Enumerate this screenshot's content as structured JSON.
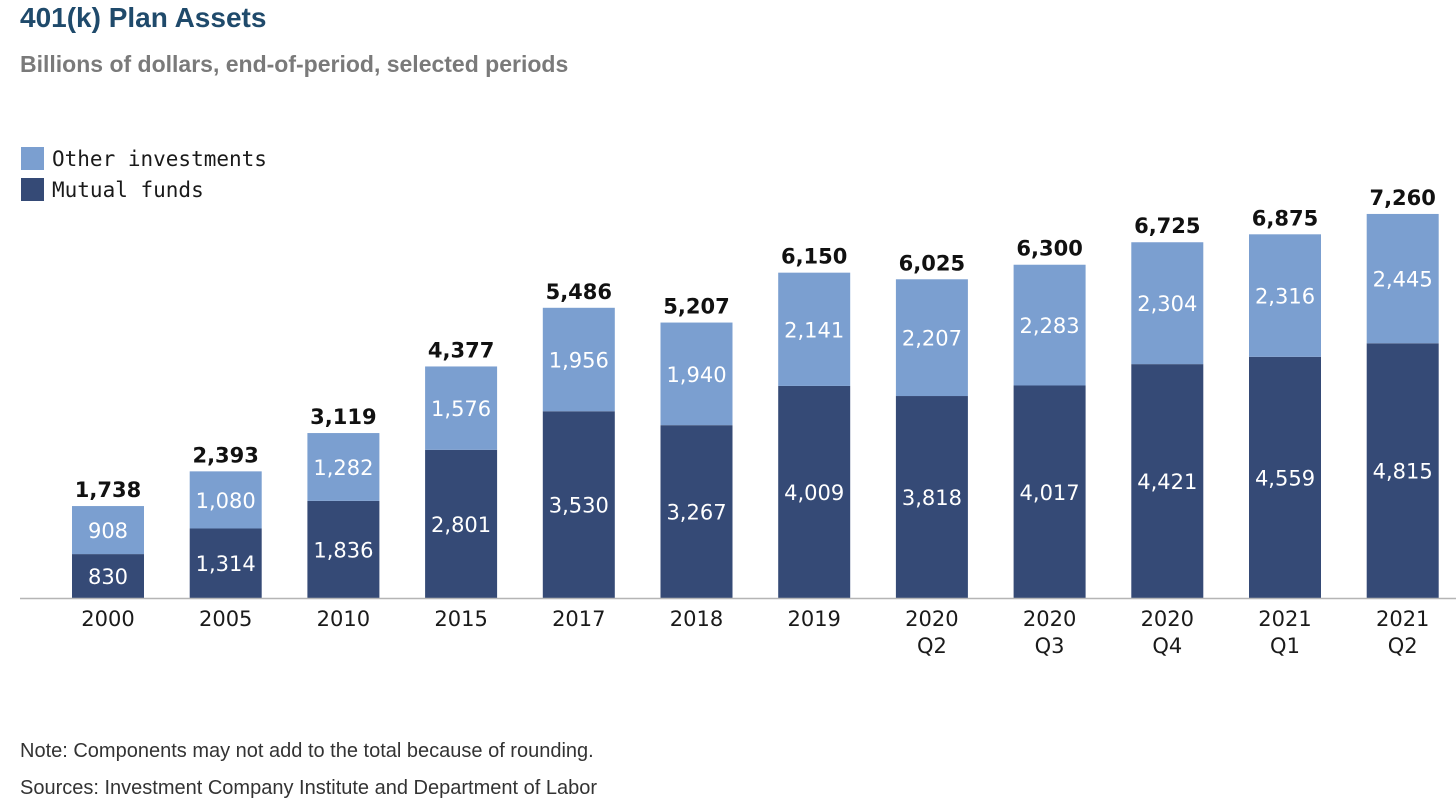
{
  "header": {
    "title": "401(k) Plan Assets",
    "subtitle": "Billions of dollars, end-of-period, selected periods"
  },
  "legend": [
    {
      "label": "Other investments",
      "color": "#7b9fd0"
    },
    {
      "label": "Mutual funds",
      "color": "#354a76"
    }
  ],
  "chart_data": {
    "type": "bar",
    "stacked": true,
    "categories": [
      [
        "2000"
      ],
      [
        "2005"
      ],
      [
        "2010"
      ],
      [
        "2015"
      ],
      [
        "2017"
      ],
      [
        "2018"
      ],
      [
        "2019"
      ],
      [
        "2020",
        "Q2"
      ],
      [
        "2020",
        "Q3"
      ],
      [
        "2020",
        "Q4"
      ],
      [
        "2021",
        "Q1"
      ],
      [
        "2021",
        "Q2"
      ]
    ],
    "series": [
      {
        "name": "Mutual funds",
        "color": "#354a76",
        "values": [
          830,
          1314,
          1836,
          2801,
          3530,
          3267,
          4009,
          3818,
          4017,
          4421,
          4559,
          4815
        ],
        "labels": [
          "830",
          "1,314",
          "1,836",
          "2,801",
          "3,530",
          "3,267",
          "4,009",
          "3,818",
          "4,017",
          "4,421",
          "4,559",
          "4,815"
        ]
      },
      {
        "name": "Other investments",
        "color": "#7b9fd0",
        "values": [
          908,
          1080,
          1282,
          1576,
          1956,
          1940,
          2141,
          2207,
          2283,
          2304,
          2316,
          2445
        ],
        "labels": [
          "908",
          "1,080",
          "1,282",
          "1,576",
          "1,956",
          "1,940",
          "2,141",
          "2,207",
          "2,283",
          "2,304",
          "2,316",
          "2,445"
        ]
      }
    ],
    "totals": [
      1738,
      2393,
      3119,
      4377,
      5486,
      5207,
      6150,
      6025,
      6300,
      6725,
      6875,
      7260
    ],
    "total_labels": [
      "1,738",
      "2,393",
      "3,119",
      "4,377",
      "5,486",
      "5,207",
      "6,150",
      "6,025",
      "6,300",
      "6,725",
      "6,875",
      "7,260"
    ],
    "ylim": [
      0,
      7500
    ],
    "grid": false,
    "legend_position": "top-left"
  },
  "footer": {
    "note": "Note: Components may not add to the total because of rounding.",
    "sources": "Sources: Investment Company Institute and Department of Labor"
  }
}
